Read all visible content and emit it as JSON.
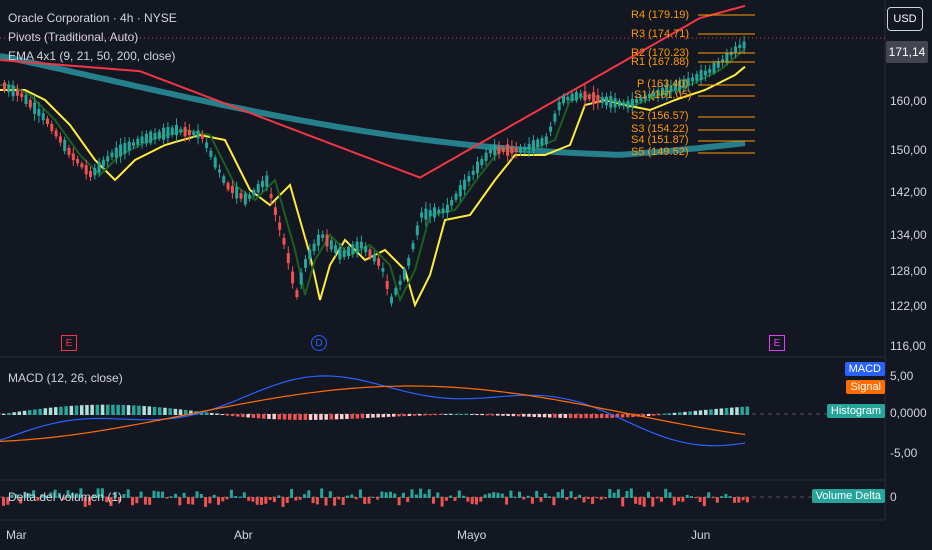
{
  "header": {
    "title": "Oracle Corporation · 4h · NYSE",
    "pivots": "Pivots (Traditional, Auto)",
    "ema": "EMA 4x1 (9, 21, 50, 200, close)"
  },
  "currency_button": "USD",
  "last_price": "171,14",
  "price_axis": [
    "160,00",
    "150,00",
    "142,00",
    "134,00",
    "128,00",
    "122,00",
    "116,00"
  ],
  "pivots": [
    {
      "label": "R4 (179.19)",
      "value": 179.19
    },
    {
      "label": "R3 (174.71)",
      "value": 174.71
    },
    {
      "label": "R2 (170.23)",
      "value": 170.23
    },
    {
      "label": "R1 (167.88)",
      "value": 167.88
    },
    {
      "label": "P (163.40)",
      "value": 163.4
    },
    {
      "label": "S1 (161.05)",
      "value": 161.05
    },
    {
      "label": "S2 (156.57)",
      "value": 156.57
    },
    {
      "label": "S3 (154.22)",
      "value": 154.22
    },
    {
      "label": "S4 (151.87)",
      "value": 151.87
    },
    {
      "label": "S5 (149.52)",
      "value": 149.52
    }
  ],
  "events": [
    {
      "label": "E",
      "color": "#f23645"
    },
    {
      "label": "D",
      "color": "#2962ff"
    },
    {
      "label": "E",
      "color": "#e040fb"
    }
  ],
  "macd": {
    "title": "MACD (12, 26, close)",
    "axis": [
      "5,00",
      "0,0000",
      "-5,00"
    ],
    "tags": [
      {
        "label": "MACD",
        "color": "#2962ff"
      },
      {
        "label": "Signal",
        "color": "#ff6d00"
      },
      {
        "label": "Histogram",
        "color": "#26a69a"
      }
    ]
  },
  "volume_delta": {
    "title": "Delta del volumen (1)",
    "tag": "Volume Delta",
    "axis": "0"
  },
  "x_axis": [
    "Mar",
    "Abr",
    "Mayo",
    "Jun"
  ],
  "colors": {
    "bg": "#131722",
    "up": "#26a69a",
    "down": "#ef5350",
    "ema9": "#1b5e20",
    "ema21": "#ffeb3b",
    "ema50": "#f23645",
    "ema200": "#26808c",
    "pivot": "#ff9800"
  }
}
